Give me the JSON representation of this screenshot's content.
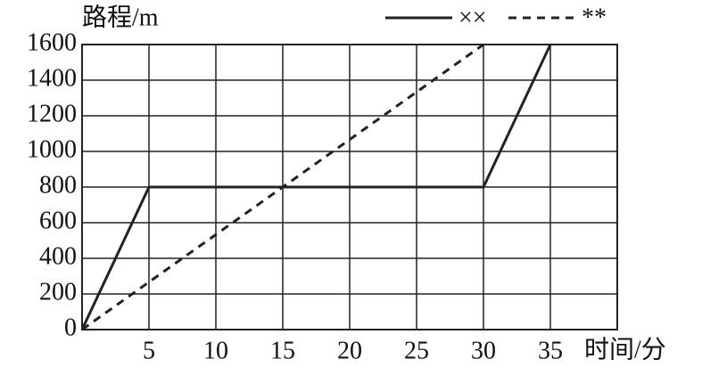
{
  "chart_data": {
    "type": "line",
    "y_label": "路程/m",
    "x_label": "时间/分",
    "xlim": [
      0,
      40
    ],
    "xticks": [
      5,
      10,
      15,
      20,
      25,
      30,
      35
    ],
    "ylim": [
      0,
      1600
    ],
    "yticks": [
      0,
      200,
      400,
      600,
      800,
      1000,
      1200,
      1400,
      1600
    ],
    "grid": true,
    "series": [
      {
        "name": "××",
        "color": "#222222",
        "dash": false,
        "x": [
          0,
          5,
          30,
          35
        ],
        "values": [
          0,
          800,
          800,
          1600
        ]
      },
      {
        "name": "**",
        "color": "#222222",
        "dash": true,
        "x": [
          0,
          30
        ],
        "values": [
          0,
          1600
        ]
      }
    ]
  }
}
